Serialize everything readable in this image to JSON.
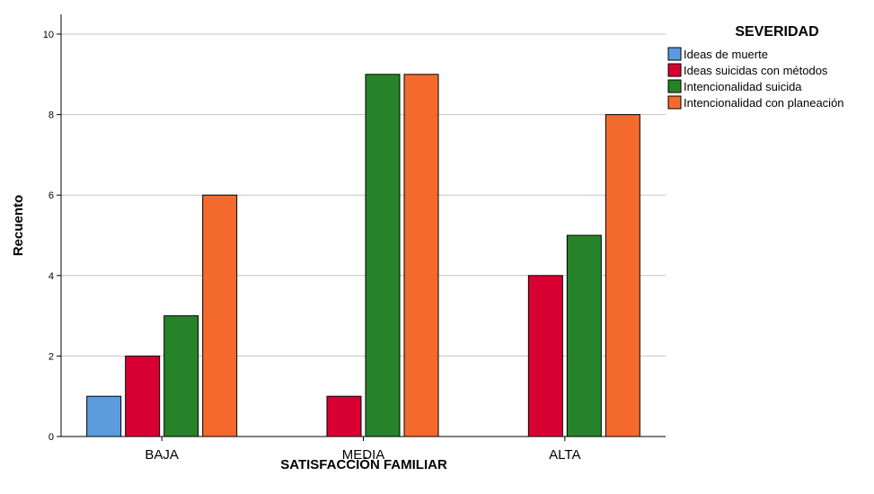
{
  "chart_data": {
    "type": "bar",
    "title": "",
    "xlabel": "SATISFACCIÓN FAMILIAR",
    "ylabel": "Recuento",
    "categories": [
      "BAJA",
      "MEDIA",
      "ALTA"
    ],
    "ylim": [
      0,
      10
    ],
    "yticks": [
      0,
      2,
      4,
      6,
      8,
      10
    ],
    "grid": true,
    "legend_title": "SEVERIDAD",
    "legend_position": "top-right",
    "series": [
      {
        "name": "Ideas de muerte",
        "color": "#5b9bde",
        "values": [
          1,
          0,
          0
        ]
      },
      {
        "name": "Ideas suicidas con métodos",
        "color": "#d80033",
        "values": [
          2,
          1,
          4
        ]
      },
      {
        "name": "Intencionalidad suicida",
        "color": "#268329",
        "values": [
          3,
          9,
          5
        ]
      },
      {
        "name": "Intencionalidad con planeación",
        "color": "#f46a2c",
        "values": [
          6,
          9,
          8
        ]
      }
    ]
  }
}
